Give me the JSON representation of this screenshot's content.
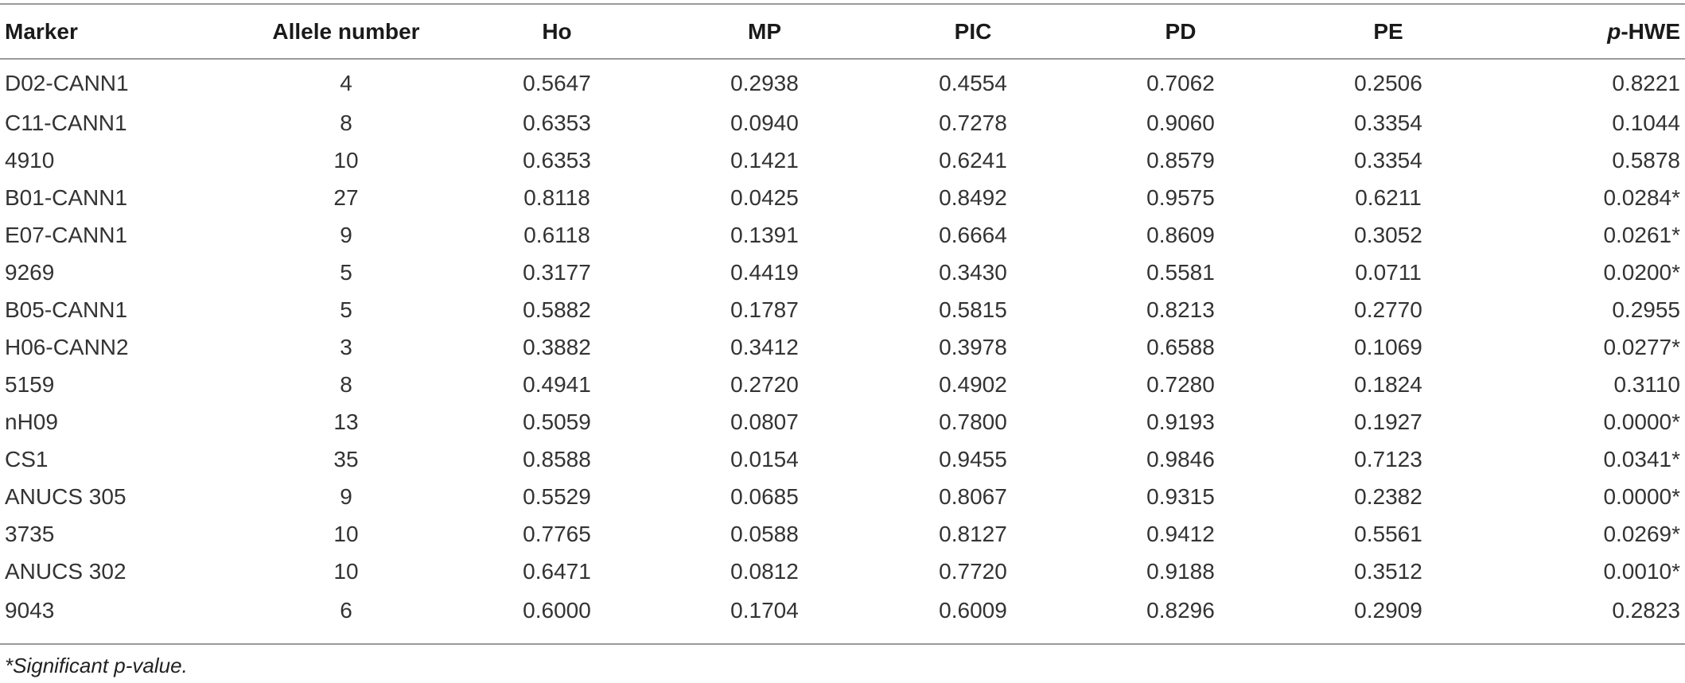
{
  "table": {
    "headers": {
      "marker": "Marker",
      "allele": "Allele number",
      "ho": "Ho",
      "mp": "MP",
      "pic": "PIC",
      "pd": "PD",
      "pe": "PE",
      "phwe_prefix": "p",
      "phwe_suffix": "-HWE"
    },
    "rows": [
      {
        "marker": "D02-CANN1",
        "allele": "4",
        "ho": "0.5647",
        "mp": "0.2938",
        "pic": "0.4554",
        "pd": "0.7062",
        "pe": "0.2506",
        "phwe": "0.8221"
      },
      {
        "marker": "C11-CANN1",
        "allele": "8",
        "ho": "0.6353",
        "mp": "0.0940",
        "pic": "0.7278",
        "pd": "0.9060",
        "pe": "0.3354",
        "phwe": "0.1044"
      },
      {
        "marker": "4910",
        "allele": "10",
        "ho": "0.6353",
        "mp": "0.1421",
        "pic": "0.6241",
        "pd": "0.8579",
        "pe": "0.3354",
        "phwe": "0.5878"
      },
      {
        "marker": "B01-CANN1",
        "allele": "27",
        "ho": "0.8118",
        "mp": "0.0425",
        "pic": "0.8492",
        "pd": "0.9575",
        "pe": "0.6211",
        "phwe": "0.0284*"
      },
      {
        "marker": "E07-CANN1",
        "allele": "9",
        "ho": "0.6118",
        "mp": "0.1391",
        "pic": "0.6664",
        "pd": "0.8609",
        "pe": "0.3052",
        "phwe": "0.0261*"
      },
      {
        "marker": "9269",
        "allele": "5",
        "ho": "0.3177",
        "mp": "0.4419",
        "pic": "0.3430",
        "pd": "0.5581",
        "pe": "0.0711",
        "phwe": "0.0200*"
      },
      {
        "marker": "B05-CANN1",
        "allele": "5",
        "ho": "0.5882",
        "mp": "0.1787",
        "pic": "0.5815",
        "pd": "0.8213",
        "pe": "0.2770",
        "phwe": "0.2955"
      },
      {
        "marker": "H06-CANN2",
        "allele": "3",
        "ho": "0.3882",
        "mp": "0.3412",
        "pic": "0.3978",
        "pd": "0.6588",
        "pe": "0.1069",
        "phwe": "0.0277*"
      },
      {
        "marker": "5159",
        "allele": "8",
        "ho": "0.4941",
        "mp": "0.2720",
        "pic": "0.4902",
        "pd": "0.7280",
        "pe": "0.1824",
        "phwe": "0.3110"
      },
      {
        "marker": "nH09",
        "allele": "13",
        "ho": "0.5059",
        "mp": "0.0807",
        "pic": "0.7800",
        "pd": "0.9193",
        "pe": "0.1927",
        "phwe": "0.0000*"
      },
      {
        "marker": "CS1",
        "allele": "35",
        "ho": "0.8588",
        "mp": "0.0154",
        "pic": "0.9455",
        "pd": "0.9846",
        "pe": "0.7123",
        "phwe": "0.0341*"
      },
      {
        "marker": "ANUCS 305",
        "allele": "9",
        "ho": "0.5529",
        "mp": "0.0685",
        "pic": "0.8067",
        "pd": "0.9315",
        "pe": "0.2382",
        "phwe": "0.0000*"
      },
      {
        "marker": "3735",
        "allele": "10",
        "ho": "0.7765",
        "mp": "0.0588",
        "pic": "0.8127",
        "pd": "0.9412",
        "pe": "0.5561",
        "phwe": "0.0269*"
      },
      {
        "marker": "ANUCS 302",
        "allele": "10",
        "ho": "0.6471",
        "mp": "0.0812",
        "pic": "0.7720",
        "pd": "0.9188",
        "pe": "0.3512",
        "phwe": "0.0010*"
      },
      {
        "marker": "9043",
        "allele": "6",
        "ho": "0.6000",
        "mp": "0.1704",
        "pic": "0.6009",
        "pd": "0.8296",
        "pe": "0.2909",
        "phwe": "0.2823"
      }
    ],
    "footnote": "*Significant p-value."
  }
}
